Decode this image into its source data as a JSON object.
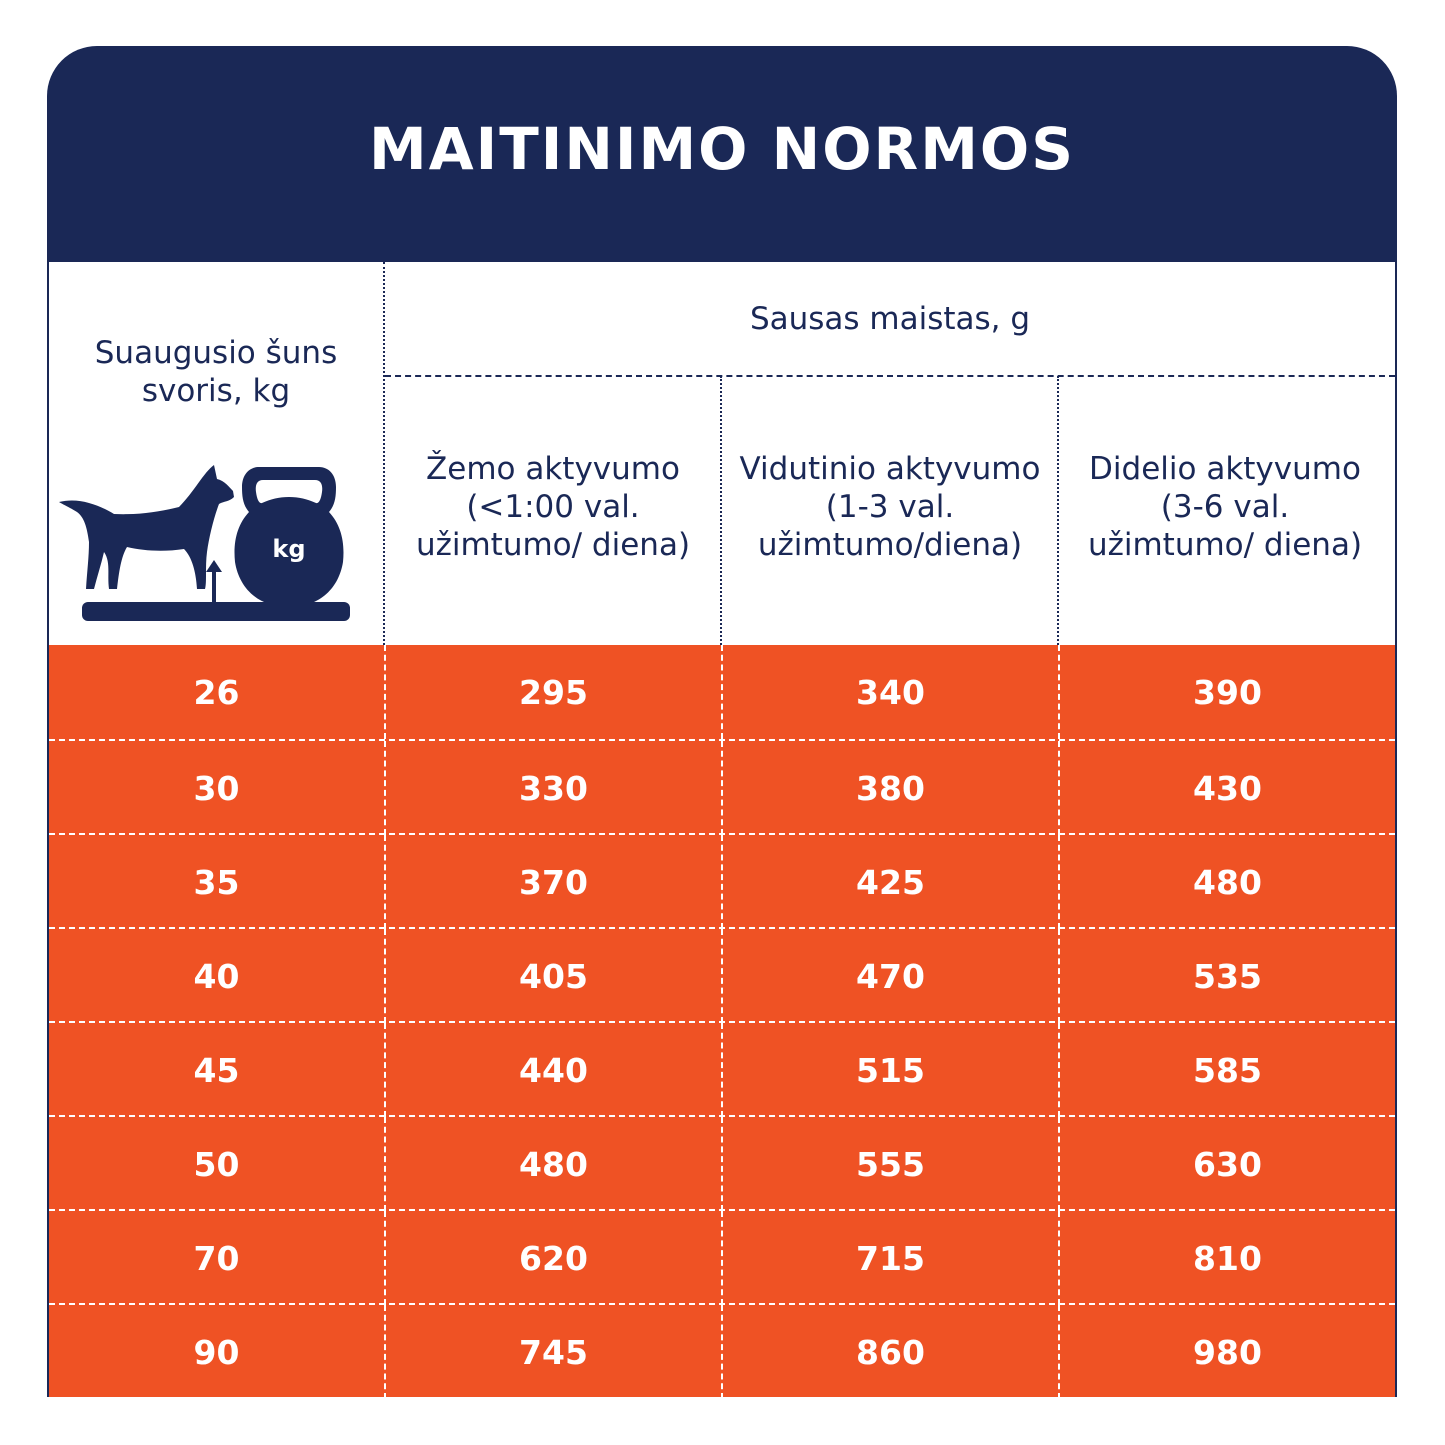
{
  "title": "MAITINIMO NORMOS",
  "colors": {
    "navy": "#1a2856",
    "orange": "#ef5224",
    "text_on_orange": "#ffffff"
  },
  "header": {
    "weight_label": "Suaugusio šuns svoris, kg",
    "icon": "dog-on-scale-with-kettlebell-icon",
    "kettlebell_text": "kg",
    "group_label": "Sausas maistas, g",
    "columns": [
      "Žemo aktyvumo (<1:00 val. užimtumo/ diena)",
      "Vidutinio aktyvumo (1-3 val. užimtumo/diena)",
      "Didelio aktyvumo (3-6 val. užimtumo/ diena)"
    ]
  },
  "rows": [
    [
      "26",
      "295",
      "340",
      "390"
    ],
    [
      "30",
      "330",
      "380",
      "430"
    ],
    [
      "35",
      "370",
      "425",
      "480"
    ],
    [
      "40",
      "405",
      "470",
      "535"
    ],
    [
      "45",
      "440",
      "515",
      "585"
    ],
    [
      "50",
      "480",
      "555",
      "630"
    ],
    [
      "70",
      "620",
      "715",
      "810"
    ],
    [
      "90",
      "745",
      "860",
      "980"
    ]
  ]
}
